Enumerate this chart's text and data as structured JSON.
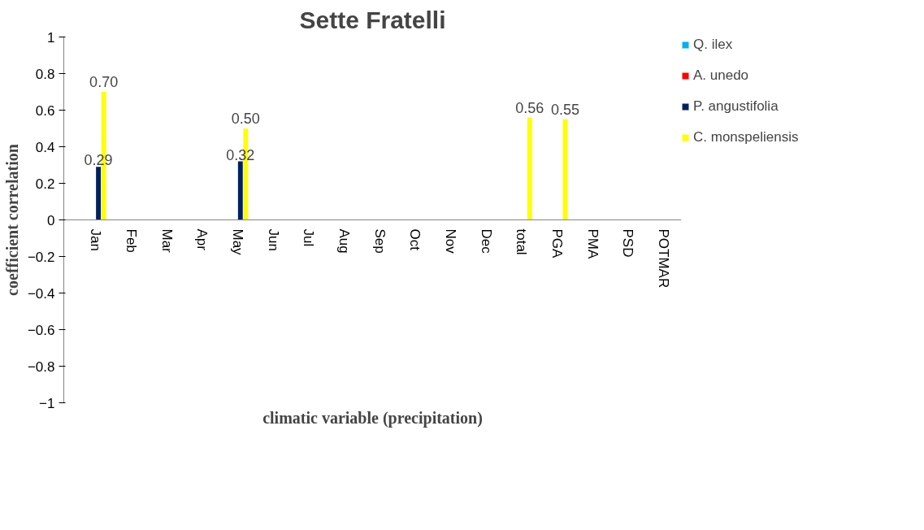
{
  "chart_data": {
    "type": "bar",
    "title": "Sette Fratelli",
    "xlabel": "climatic variable (precipitation)",
    "ylabel": "coefficient correlation",
    "categories": [
      "Jan",
      "Feb",
      "Mar",
      "Apr",
      "May",
      "Jun",
      "Jul",
      "Aug",
      "Sep",
      "Oct",
      "Nov",
      "Dec",
      "total",
      "PGA",
      "PMA",
      "PSD",
      "POTMAR"
    ],
    "series": [
      {
        "name": "Q. ilex",
        "color": "#00b0f0",
        "values": [
          null,
          null,
          null,
          null,
          null,
          null,
          null,
          null,
          null,
          null,
          null,
          null,
          null,
          null,
          null,
          null,
          null
        ]
      },
      {
        "name": "A. unedo",
        "color": "#ff0000",
        "values": [
          null,
          null,
          null,
          null,
          null,
          null,
          null,
          null,
          null,
          null,
          null,
          null,
          null,
          null,
          null,
          null,
          null
        ]
      },
      {
        "name": "P. angustifolia",
        "color": "#002060",
        "values": [
          0.29,
          null,
          null,
          null,
          0.32,
          null,
          null,
          null,
          null,
          null,
          null,
          null,
          null,
          null,
          null,
          null,
          null
        ],
        "value_labels": [
          "0.29",
          null,
          null,
          null,
          "0.32",
          null,
          null,
          null,
          null,
          null,
          null,
          null,
          null,
          null,
          null,
          null,
          null
        ]
      },
      {
        "name": "C. monspeliensis",
        "color": "#ffff00",
        "values": [
          0.7,
          null,
          null,
          null,
          0.5,
          null,
          null,
          null,
          null,
          null,
          null,
          null,
          0.56,
          0.55,
          null,
          null,
          null
        ],
        "value_labels": [
          "0.70",
          null,
          null,
          null,
          "0.50",
          null,
          null,
          null,
          null,
          null,
          null,
          null,
          "0.56",
          "0.55",
          null,
          null,
          null
        ]
      }
    ],
    "ylim": [
      -1,
      1
    ],
    "yticks": [
      -1,
      -0.8,
      -0.6,
      -0.4,
      -0.2,
      0,
      0.2,
      0.4,
      0.6,
      0.8,
      1
    ],
    "grid": false,
    "legend": "right"
  }
}
